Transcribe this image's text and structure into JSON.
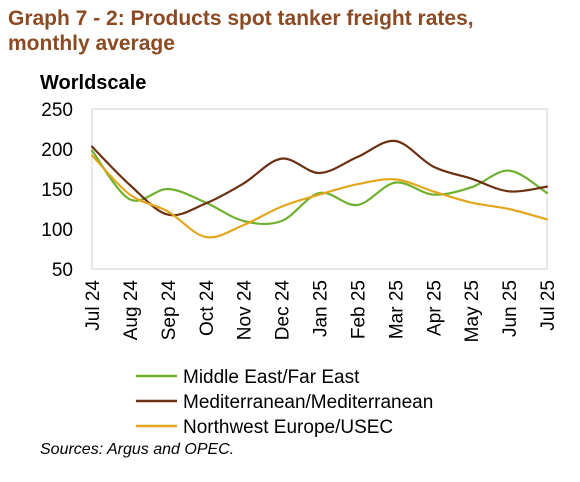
{
  "title": {
    "line1": "Graph 7 - 2: Products spot tanker freight rates,",
    "line2": "monthly average"
  },
  "source": "Sources: Argus and OPEC.",
  "chart_data": {
    "type": "line",
    "title": "Graph 7 - 2: Products spot tanker freight rates, monthly average",
    "ylabel": "Worldscale",
    "xlabel": "",
    "ylim": [
      50,
      250
    ],
    "yticks": [
      250,
      200,
      150,
      100,
      50
    ],
    "categories": [
      "Jul 24",
      "Aug 24",
      "Sep 24",
      "Oct 24",
      "Nov 24",
      "Dec 24",
      "Jan 25",
      "Feb 25",
      "Mar 25",
      "Apr 25",
      "May 25",
      "Jun 25",
      "Jul 25"
    ],
    "grid": false,
    "legend_position": "bottom",
    "series": [
      {
        "name": "Middle East/Far East",
        "color": "#6fb02f",
        "values": [
          198,
          137,
          150,
          133,
          110,
          110,
          145,
          130,
          158,
          143,
          152,
          173,
          145
        ]
      },
      {
        "name": "Mediterranean/Mediterranean",
        "color": "#6b3012",
        "values": [
          203,
          155,
          118,
          132,
          157,
          188,
          170,
          190,
          210,
          178,
          163,
          147,
          153
        ]
      },
      {
        "name": "Northwest Europe/USEC",
        "color": "#e3a61d",
        "values": [
          192,
          143,
          122,
          90,
          105,
          128,
          143,
          156,
          162,
          147,
          133,
          125,
          112
        ]
      }
    ]
  }
}
